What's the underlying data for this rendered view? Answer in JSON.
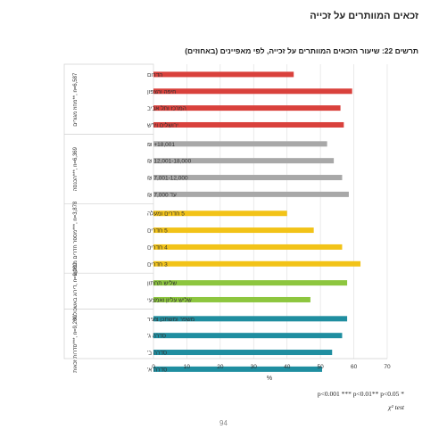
{
  "page": {
    "title": "זכאים המוותרים על זכייה",
    "figure_title": "תרשים 22: שיעור הזכאים המוותרים על זכייה, לפי מאפיינים (באחוזים)",
    "footnote": "p<0.001 ***   p<0.01** p<0.05 *",
    "test_note": "χ² test",
    "page_number": "94"
  },
  "chart_data": {
    "type": "bar",
    "orientation": "horizontal",
    "xlabel": "%",
    "xlim": [
      0,
      70
    ],
    "xticks": [
      0,
      10,
      20,
      30,
      40,
      50,
      60,
      70
    ],
    "grid": true,
    "groups": [
      {
        "label": "מחוז מגורים**, n=6,587",
        "color": "#d9413c",
        "items": [
          {
            "label": "הדרום",
            "value": 42
          },
          {
            "label": "חיפה והצפון",
            "value": 59.5
          },
          {
            "label": "המרכז ותל אביב",
            "value": 56
          },
          {
            "label": "ירושלים ויו\"ש",
            "value": 57
          }
        ]
      },
      {
        "label": "הכנסה***, n=6,369",
        "color": "#a8a8a8",
        "items": [
          {
            "label": "18,001+ ₪",
            "value": 52
          },
          {
            "label": "12,001-18,000 ₪",
            "value": 54
          },
          {
            "label": "7,001-12,000 ₪",
            "value": 56.5
          },
          {
            "label": "עד 7,000 ₪",
            "value": 58.5
          }
        ]
      },
      {
        "label": "מספר חדרים מבוקש***, n=3,878",
        "color": "#f2c318",
        "items": [
          {
            "label": "5 חדרים ומעלה",
            "value": 40
          },
          {
            "label": "5 חדרים",
            "value": 48
          },
          {
            "label": "4 חדרים",
            "value": 56.5
          },
          {
            "label": "3 חדרים",
            "value": 62
          }
        ]
      },
      {
        "label": "דירוג באשכולות, n=9,080",
        "color": "#8dc63f",
        "items": [
          {
            "label": "שליש תחתון",
            "value": 58
          },
          {
            "label": "שליש עליון ואמצעי",
            "value": 47
          }
        ]
      },
      {
        "label": "סדרות זכאות***, n=9,260",
        "color": "#1f8ea0",
        "items": [
          {
            "label": "משפר ומשתכן צעיר",
            "value": 58
          },
          {
            "label": "סדרה ג'",
            "value": 56.5
          },
          {
            "label": "סדרה ב'",
            "value": 53.5
          },
          {
            "label": "סדרה א'",
            "value": 50.5
          }
        ]
      }
    ]
  }
}
